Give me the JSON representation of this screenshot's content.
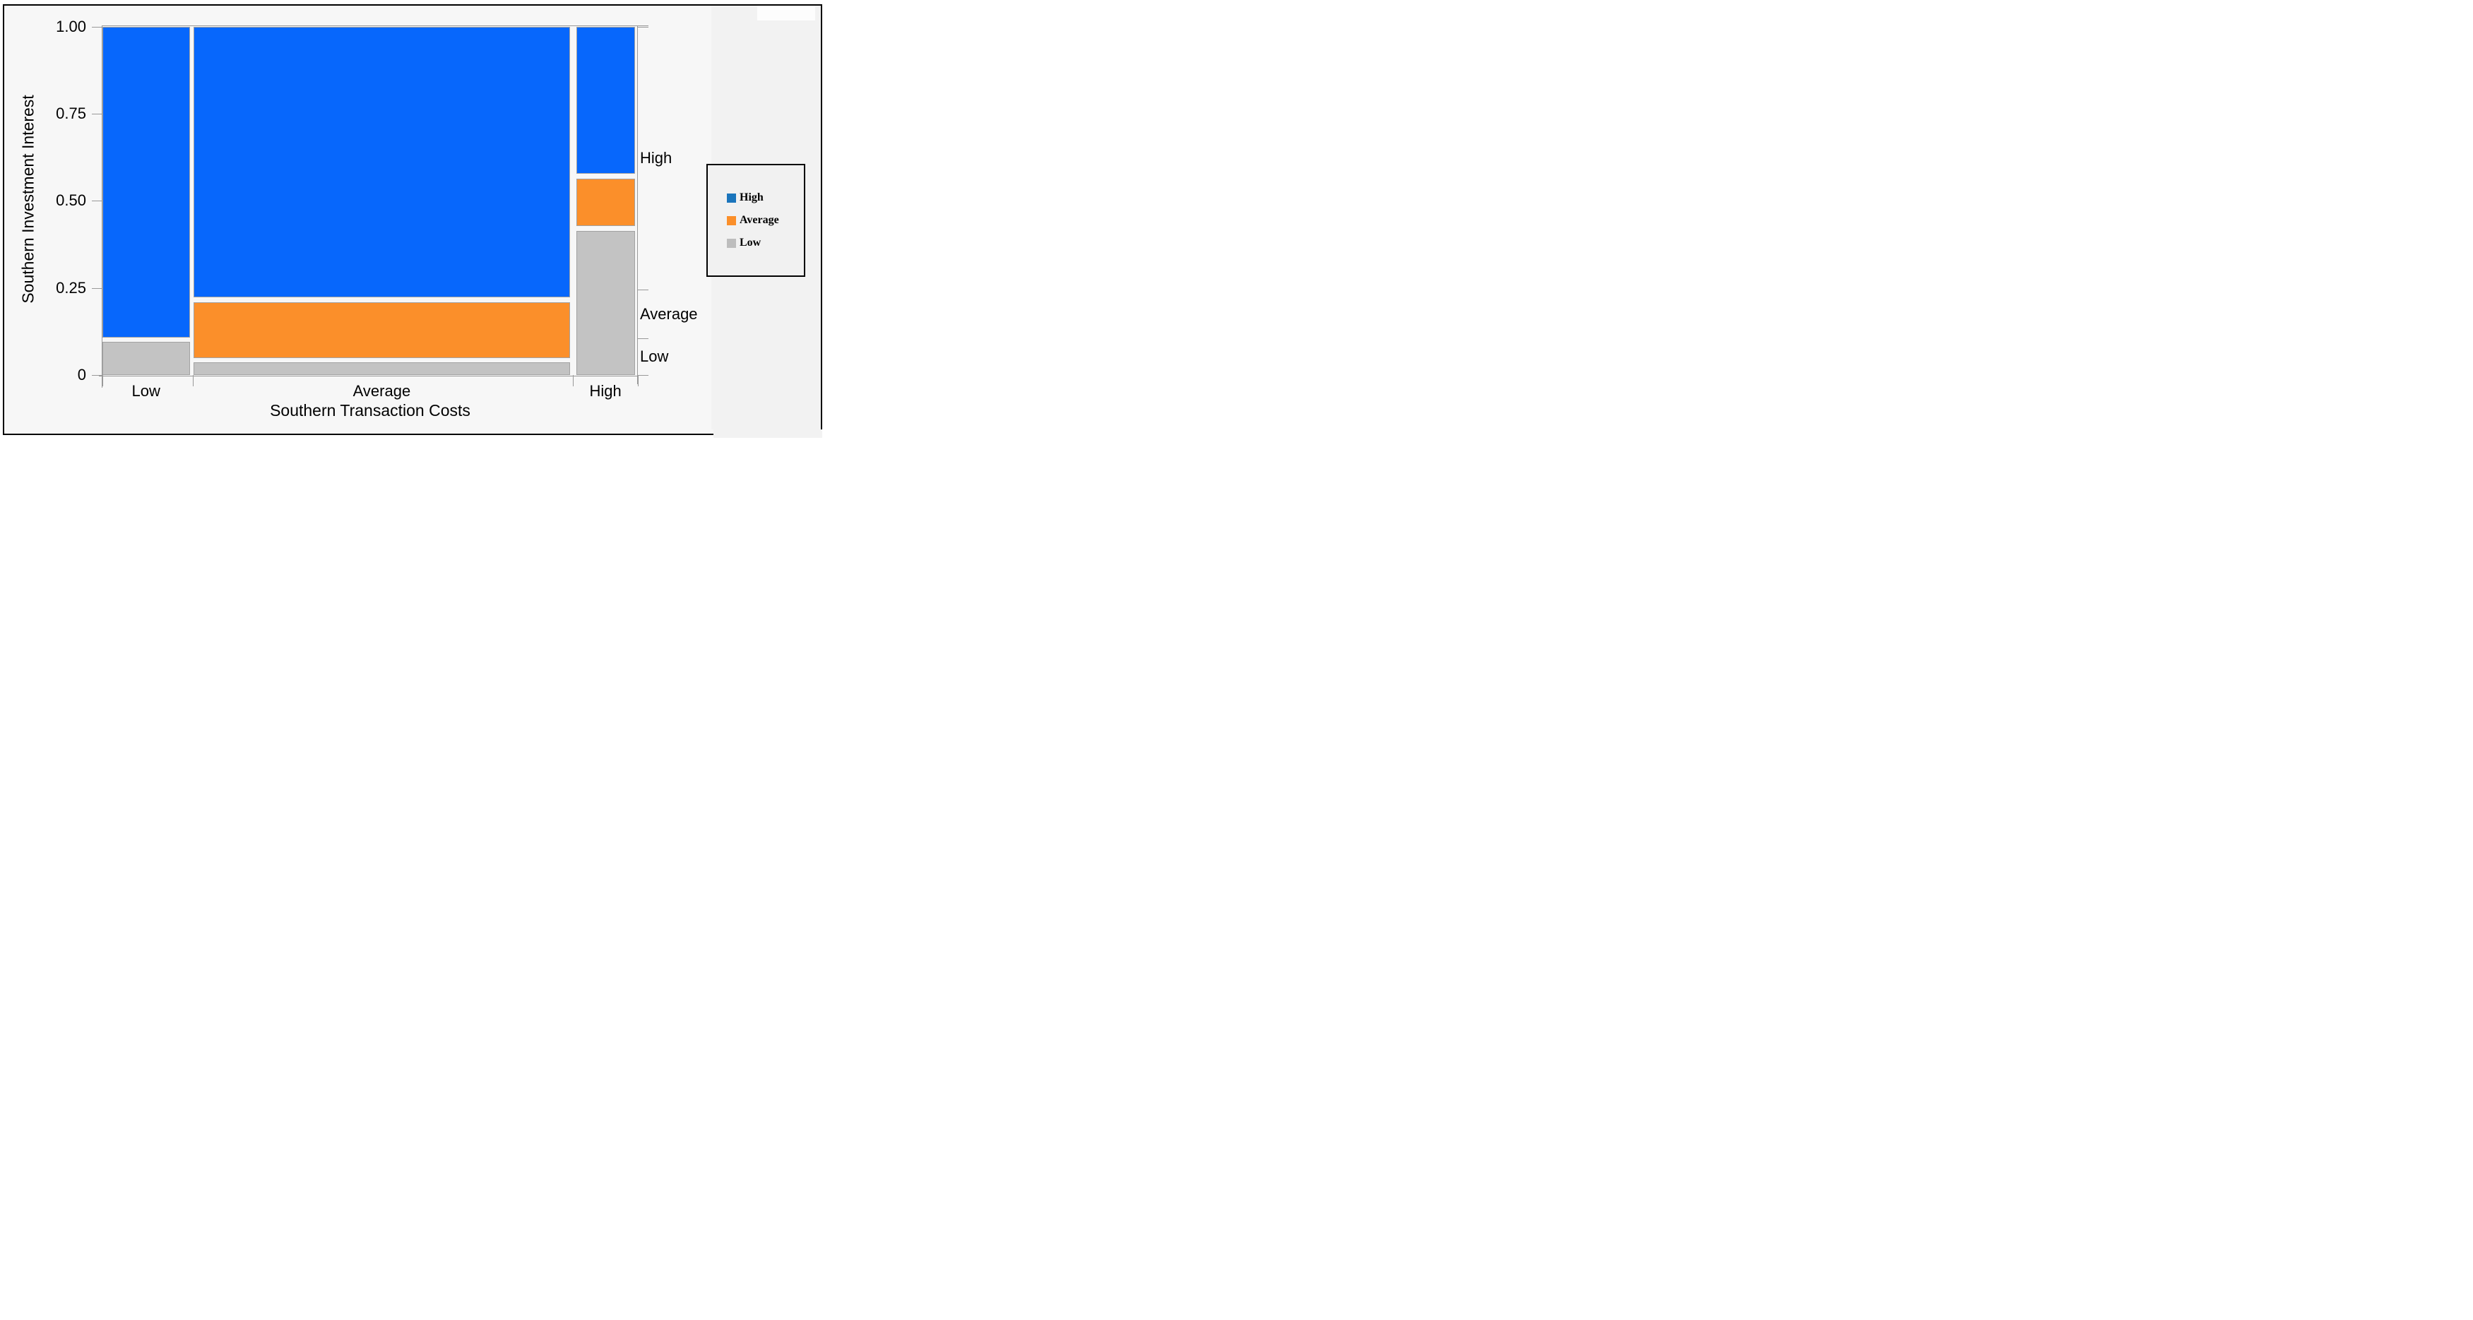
{
  "chart_data": {
    "type": "mosaic",
    "title": "",
    "xlabel": "Southern Transaction Costs",
    "ylabel": "Southern Investment Interest",
    "x_categories": [
      "Low",
      "Average",
      "High"
    ],
    "response_categories": [
      "High",
      "Average",
      "Low"
    ],
    "axis": {
      "ymin": 0,
      "ymax": 1,
      "grid": false
    },
    "y_ticks": [
      {
        "label": "1.00",
        "value": 1.0
      },
      {
        "label": "0.75",
        "value": 0.75
      },
      {
        "label": "0.50",
        "value": 0.5
      },
      {
        "label": "0.25",
        "value": 0.25
      },
      {
        "label": "0",
        "value": 0.0
      }
    ],
    "x_boundary_ticks": [
      0.0,
      0.169,
      0.879,
      1.0
    ],
    "right_axis": {
      "ticks": [
        1.0,
        0.245,
        0.105,
        0.0
      ],
      "labels": [
        {
          "label": "High",
          "value": 0.622
        },
        {
          "label": "Average",
          "value": 0.175
        },
        {
          "label": "Low",
          "value": 0.0525
        }
      ]
    },
    "colors": {
      "High": "#0767fc",
      "Average": "#fb8f2a",
      "Low": "#c3c3c3",
      "segment_border": "#a2a2a2",
      "axis_line": "#999999"
    },
    "columns": [
      {
        "label": "Low",
        "x0": 0.0,
        "x1": 0.1636,
        "width_share": 0.164,
        "segments": [
          {
            "category": "Low",
            "y0": 0.0,
            "y1": 0.096,
            "proportion": 0.1
          },
          {
            "category": "High",
            "y0": 0.107,
            "y1": 1.0,
            "proportion": 0.9
          }
        ]
      },
      {
        "label": "Average",
        "x0": 0.1706,
        "x1": 0.8736,
        "width_share": 0.703,
        "segments": [
          {
            "category": "Low",
            "y0": 0.0,
            "y1": 0.037,
            "proportion": 0.04
          },
          {
            "category": "Average",
            "y0": 0.049,
            "y1": 0.209,
            "proportion": 0.17
          },
          {
            "category": "High",
            "y0": 0.222,
            "y1": 1.0,
            "proportion": 0.79
          }
        ]
      },
      {
        "label": "High",
        "x0": 0.885,
        "x1": 0.9948,
        "width_share": 0.11,
        "segments": [
          {
            "category": "Low",
            "y0": 0.0,
            "y1": 0.414,
            "proportion": 0.42
          },
          {
            "category": "Average",
            "y0": 0.428,
            "y1": 0.563,
            "proportion": 0.14
          },
          {
            "category": "High",
            "y0": 0.578,
            "y1": 1.0,
            "proportion": 0.44
          }
        ]
      }
    ],
    "legend": {
      "position": "right",
      "items": [
        {
          "label": "High",
          "marker_color": "#1b75bc"
        },
        {
          "label": "Average",
          "marker_color": "#fb8f2a"
        },
        {
          "label": "Low",
          "marker_color": "#bdbdbd"
        }
      ]
    }
  }
}
